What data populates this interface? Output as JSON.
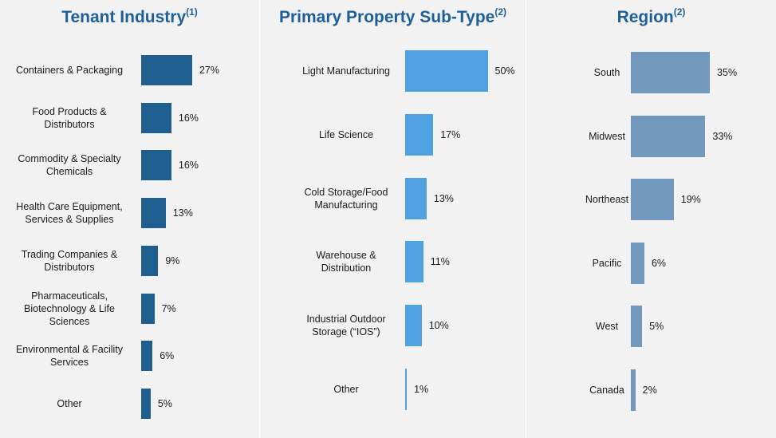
{
  "colors": {
    "title": "#1f5f99",
    "tenant_bar": "#1f5f8f",
    "subtype_bar": "#4fa1df",
    "region_bar": "#7298bd"
  },
  "chart_data": [
    {
      "type": "bar",
      "orientation": "horizontal",
      "title": "Tenant Industry",
      "title_note": "(1)",
      "categories": [
        "Containers & Packaging",
        "Food Products &\nDistributors",
        "Commodity & Specialty\nChemicals",
        "Health Care Equipment,\nServices & Supplies",
        "Trading Companies &\nDistributors",
        "Pharmaceuticals,\nBiotechnology & Life\nSciences",
        "Environmental & Facility\nServices",
        "Other"
      ],
      "values": [
        27,
        16,
        16,
        13,
        9,
        7,
        6,
        5
      ],
      "value_labels": [
        "27%",
        "16%",
        "16%",
        "13%",
        "9%",
        "7%",
        "6%",
        "5%"
      ],
      "unit": "%",
      "xlim": [
        0,
        50
      ],
      "grid": false,
      "legend": "none"
    },
    {
      "type": "bar",
      "orientation": "horizontal",
      "title": "Primary Property Sub-Type",
      "title_note": "(2)",
      "categories": [
        "Light Manufacturing",
        "Life Science",
        "Cold Storage/Food\nManufacturing",
        "Warehouse &\nDistribution",
        "Industrial Outdoor\nStorage (“IOS”)",
        "Other"
      ],
      "values": [
        50,
        17,
        13,
        11,
        10,
        1
      ],
      "value_labels": [
        "50%",
        "17%",
        "13%",
        "11%",
        "10%",
        "1%"
      ],
      "unit": "%",
      "xlim": [
        0,
        50
      ],
      "grid": false,
      "legend": "none"
    },
    {
      "type": "bar",
      "orientation": "horizontal",
      "title": "Region",
      "title_note": "(2)",
      "categories": [
        "South",
        "Midwest",
        "Northeast",
        "Pacific",
        "West",
        "Canada"
      ],
      "values": [
        35,
        33,
        19,
        6,
        5,
        2
      ],
      "value_labels": [
        "35%",
        "33%",
        "19%",
        "6%",
        "5%",
        "2%"
      ],
      "unit": "%",
      "xlim": [
        0,
        35
      ],
      "grid": false,
      "legend": "none"
    }
  ]
}
